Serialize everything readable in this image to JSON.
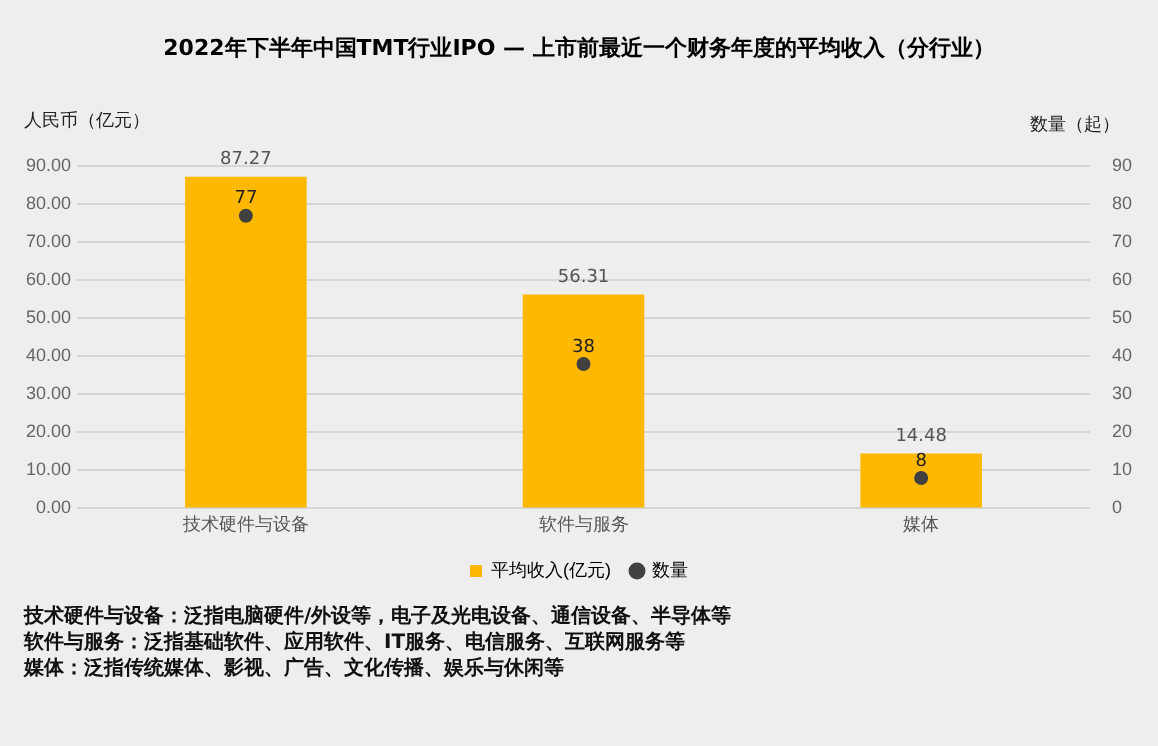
{
  "chart_data": {
    "type": "bar",
    "title": "2022年下半年中国TMT行业IPO — 上市前最近一个财务年度的平均收入（分行业）",
    "ylabel": "人民币（亿元）",
    "y2label": "数量（起）",
    "categories": [
      "技术硬件与设备",
      "软件与服务",
      "媒体"
    ],
    "series": [
      {
        "name": "平均收入(亿元)",
        "color": "#ffb800",
        "values": [
          87.27,
          56.31,
          14.48
        ]
      },
      {
        "name": "数量",
        "type": "scatter",
        "axis": "y2",
        "color": "#404040",
        "values": [
          77,
          38,
          8
        ]
      }
    ],
    "ylim": [
      0,
      90
    ],
    "yticks": [
      {
        "value": 0,
        "label": "0.00"
      },
      {
        "value": 10,
        "label": "10.00"
      },
      {
        "value": 20,
        "label": "20.00"
      },
      {
        "value": 30,
        "label": "30.00"
      },
      {
        "value": 40,
        "label": "40.00"
      },
      {
        "value": 50,
        "label": "50.00"
      },
      {
        "value": 60,
        "label": "60.00"
      },
      {
        "value": 70,
        "label": "70.00"
      },
      {
        "value": 80,
        "label": "80.00"
      },
      {
        "value": 90,
        "label": "90.00"
      }
    ],
    "y2lim": [
      0,
      90
    ],
    "y2ticks": [
      0,
      10,
      20,
      30,
      40,
      50,
      60,
      70,
      80,
      90
    ],
    "data_labels": true,
    "grid": "y",
    "legend": "bottom",
    "marker": "circle",
    "annotations": [
      "技术硬件与设备：泛指电脑硬件/外设等，电子及光电设备、通信设备、半导体等",
      "软件与服务：泛指基础软件、应用软件、IT服务、电信服务、互联网服务等",
      "媒体：泛指传统媒体、影视、广告、文化传播、娱乐与休闲等"
    ]
  }
}
